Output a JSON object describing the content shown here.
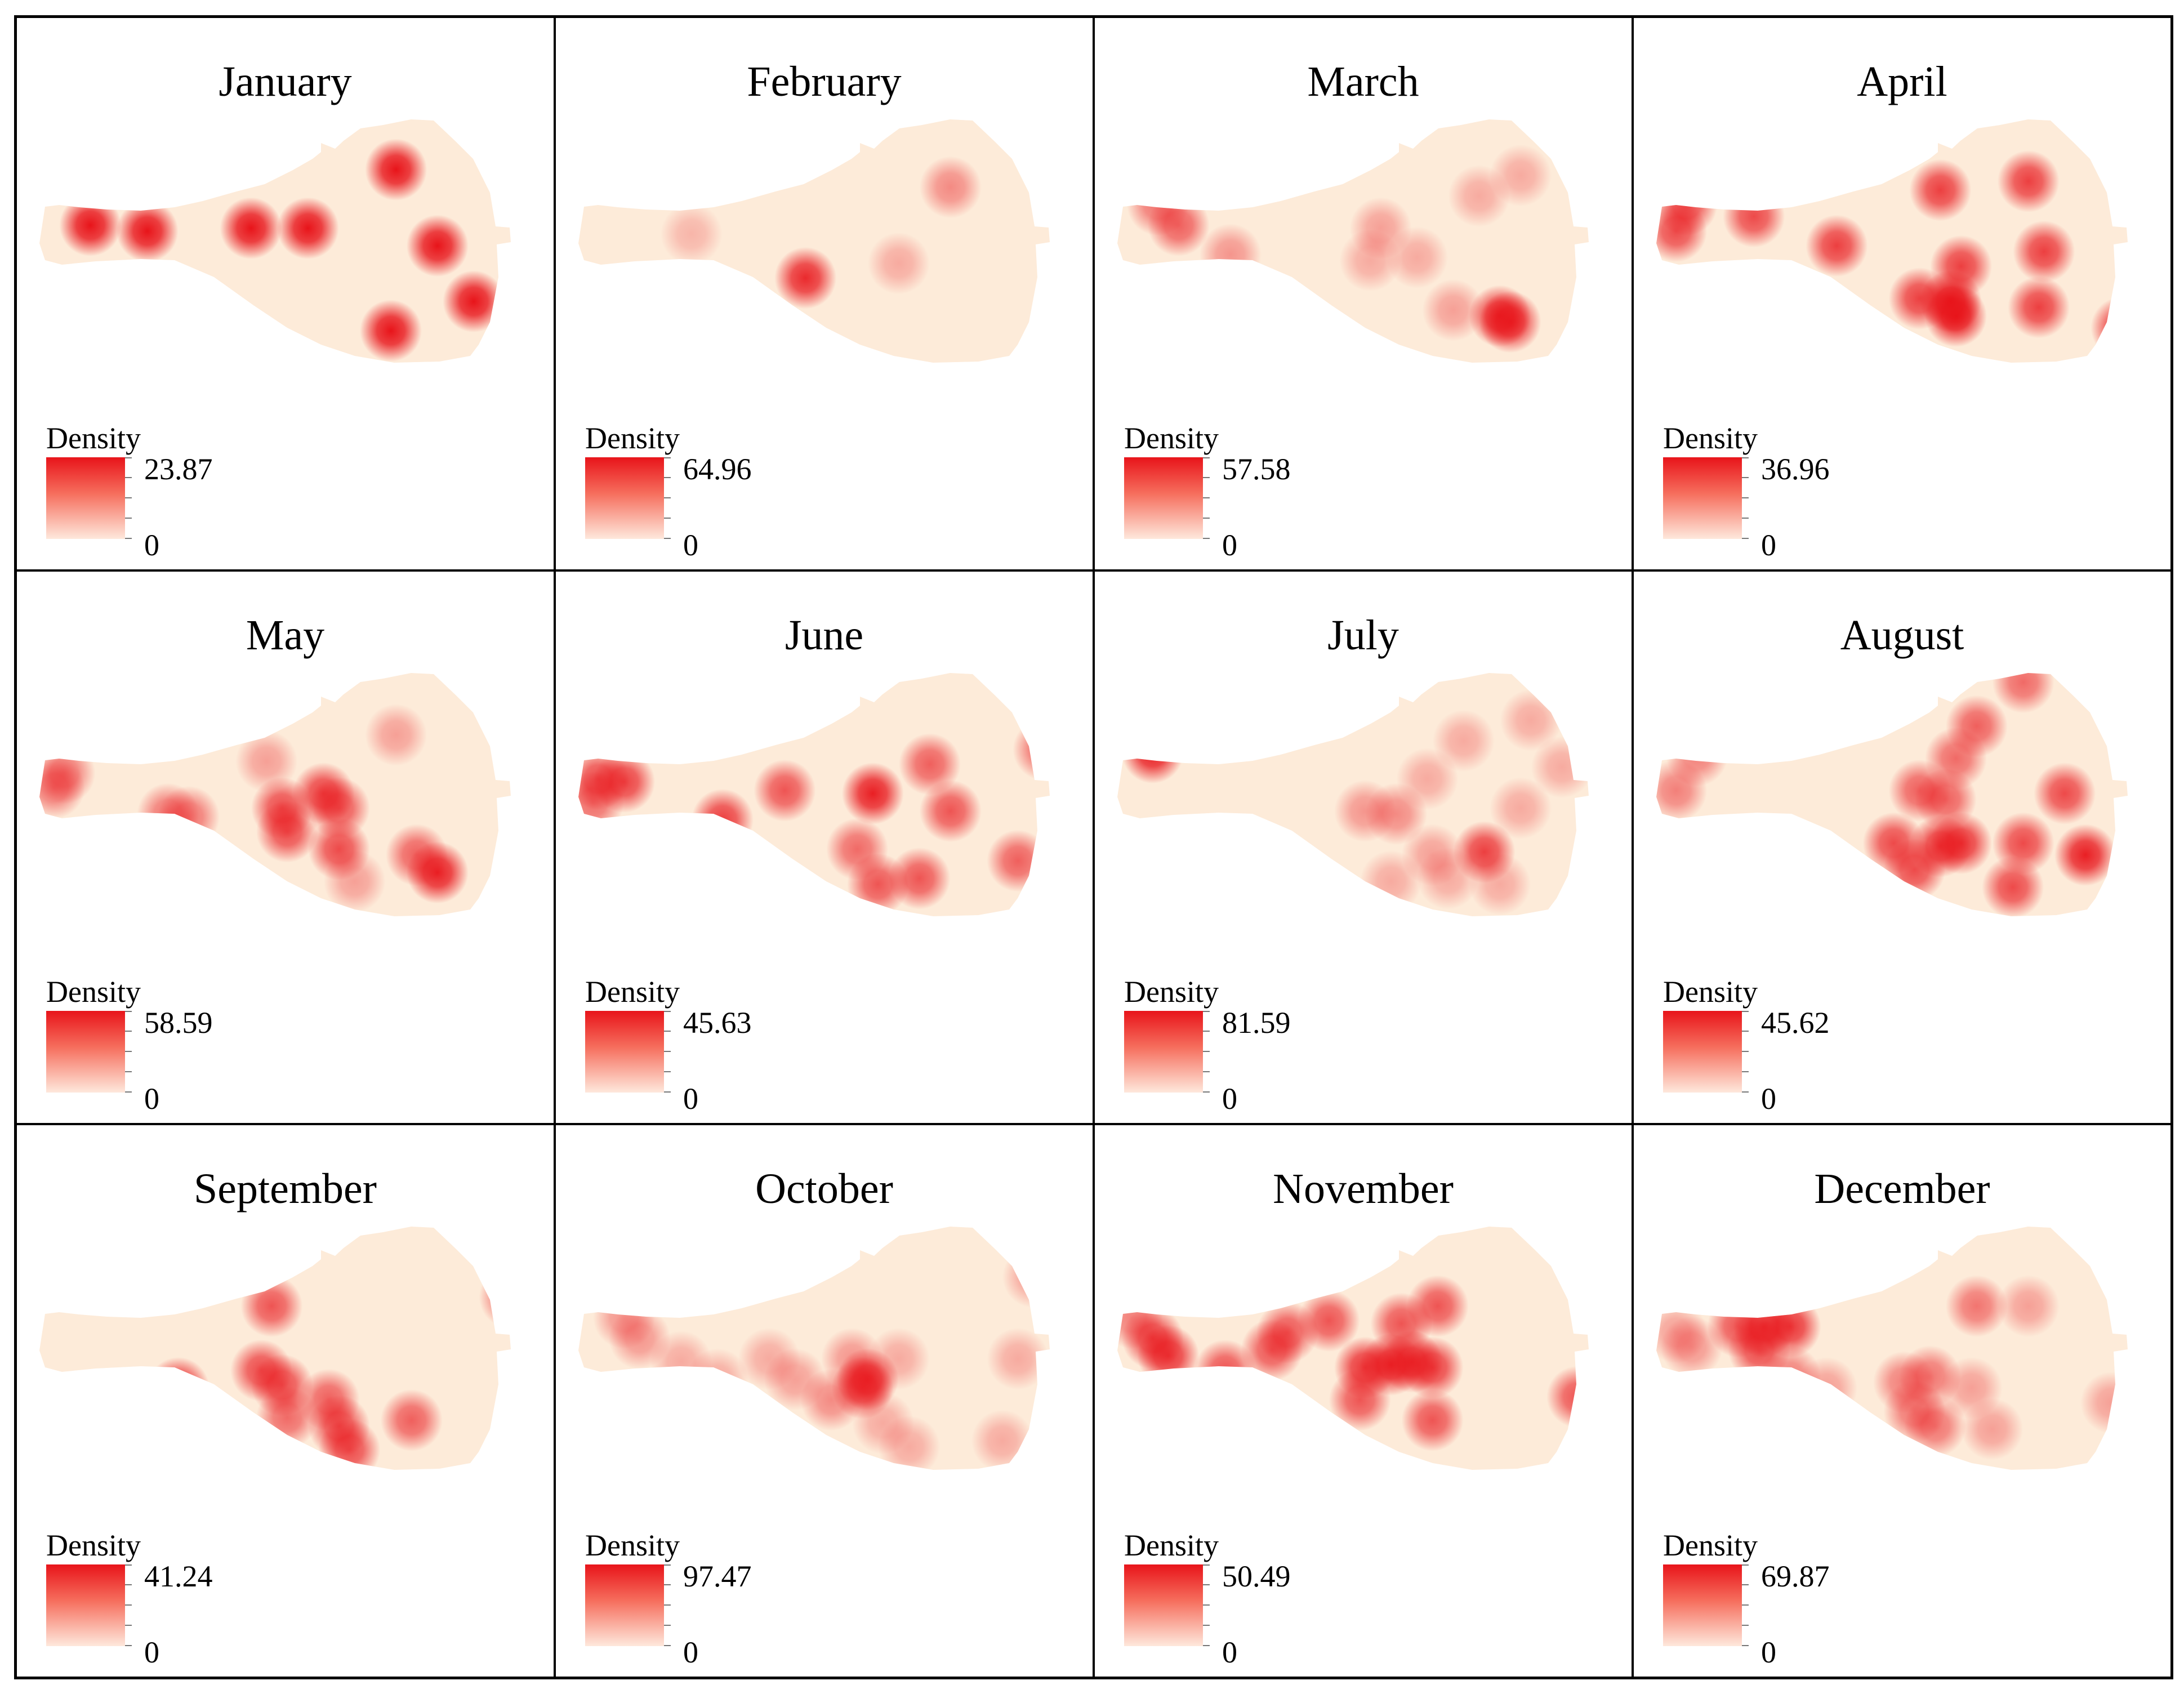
{
  "legend_title": "Density",
  "legend_min": "0",
  "colors": {
    "background": "#fdebd9",
    "high": "#e8141a",
    "low": "#fee8dc"
  },
  "panels": [
    {
      "month": "January",
      "max": "23.87",
      "hotspots": [
        [
          0.11,
          0.23,
          1.0
        ],
        [
          0.12,
          0.4,
          1.0
        ],
        [
          0.23,
          0.42,
          1.0
        ],
        [
          0.43,
          0.41,
          1.0
        ],
        [
          0.54,
          0.41,
          1.0
        ],
        [
          0.71,
          0.21,
          1.0
        ],
        [
          0.79,
          0.47,
          1.0
        ],
        [
          0.86,
          0.66,
          1.0
        ],
        [
          0.7,
          0.76,
          1.0
        ]
      ]
    },
    {
      "month": "February",
      "max": "64.96",
      "hotspots": [
        [
          0.24,
          0.43,
          0.25
        ],
        [
          0.46,
          0.58,
          0.9
        ],
        [
          0.64,
          0.53,
          0.3
        ],
        [
          0.74,
          0.27,
          0.45
        ]
      ]
    },
    {
      "month": "March",
      "max": "57.58",
      "hotspots": [
        [
          0.1,
          0.33,
          0.55
        ],
        [
          0.14,
          0.4,
          0.65
        ],
        [
          0.24,
          0.5,
          0.4
        ],
        [
          0.53,
          0.41,
          0.35
        ],
        [
          0.51,
          0.52,
          0.3
        ],
        [
          0.6,
          0.51,
          0.3
        ],
        [
          0.72,
          0.3,
          0.3
        ],
        [
          0.8,
          0.23,
          0.3
        ],
        [
          0.67,
          0.69,
          0.35
        ],
        [
          0.76,
          0.71,
          0.9
        ],
        [
          0.78,
          0.73,
          0.9
        ]
      ]
    },
    {
      "month": "April",
      "max": "36.96",
      "hotspots": [
        [
          0.08,
          0.33,
          0.75
        ],
        [
          0.06,
          0.42,
          0.75
        ],
        [
          0.21,
          0.37,
          0.75
        ],
        [
          0.37,
          0.47,
          0.8
        ],
        [
          0.57,
          0.28,
          0.8
        ],
        [
          0.74,
          0.25,
          0.8
        ],
        [
          0.77,
          0.49,
          0.8
        ],
        [
          0.61,
          0.54,
          0.8
        ],
        [
          0.53,
          0.65,
          0.8
        ],
        [
          0.59,
          0.66,
          1.0
        ],
        [
          0.6,
          0.71,
          1.0
        ],
        [
          0.76,
          0.68,
          0.8
        ],
        [
          0.92,
          0.75,
          0.85
        ]
      ]
    },
    {
      "month": "May",
      "max": "58.59",
      "hotspots": [
        [
          0.07,
          0.38,
          0.55
        ],
        [
          0.05,
          0.43,
          0.55
        ],
        [
          0.27,
          0.52,
          0.55
        ],
        [
          0.31,
          0.53,
          0.55
        ],
        [
          0.46,
          0.34,
          0.35
        ],
        [
          0.49,
          0.5,
          0.75
        ],
        [
          0.5,
          0.58,
          0.75
        ],
        [
          0.57,
          0.45,
          0.8
        ],
        [
          0.6,
          0.5,
          0.7
        ],
        [
          0.6,
          0.64,
          0.75
        ],
        [
          0.71,
          0.25,
          0.35
        ],
        [
          0.63,
          0.75,
          0.35
        ],
        [
          0.75,
          0.66,
          0.65
        ],
        [
          0.79,
          0.72,
          0.95
        ]
      ]
    },
    {
      "month": "June",
      "max": "45.63",
      "hotspots": [
        [
          0.06,
          0.4,
          0.75
        ],
        [
          0.11,
          0.41,
          0.8
        ],
        [
          0.05,
          0.48,
          0.6
        ],
        [
          0.3,
          0.54,
          0.8
        ],
        [
          0.42,
          0.44,
          0.7
        ],
        [
          0.59,
          0.45,
          0.95
        ],
        [
          0.7,
          0.35,
          0.65
        ],
        [
          0.74,
          0.51,
          0.7
        ],
        [
          0.56,
          0.64,
          0.6
        ],
        [
          0.6,
          0.76,
          0.7
        ],
        [
          0.68,
          0.74,
          0.7
        ],
        [
          0.87,
          0.68,
          0.65
        ],
        [
          0.92,
          0.3,
          0.6
        ]
      ]
    },
    {
      "month": "July",
      "max": "81.59",
      "hotspots": [
        [
          0.09,
          0.31,
          0.95
        ],
        [
          0.5,
          0.51,
          0.4
        ],
        [
          0.56,
          0.52,
          0.45
        ],
        [
          0.62,
          0.4,
          0.3
        ],
        [
          0.69,
          0.27,
          0.3
        ],
        [
          0.82,
          0.2,
          0.3
        ],
        [
          0.88,
          0.36,
          0.3
        ],
        [
          0.8,
          0.5,
          0.3
        ],
        [
          0.63,
          0.66,
          0.35
        ],
        [
          0.73,
          0.65,
          0.8
        ],
        [
          0.55,
          0.75,
          0.3
        ],
        [
          0.66,
          0.74,
          0.3
        ],
        [
          0.76,
          0.76,
          0.3
        ]
      ]
    },
    {
      "month": "August",
      "max": "45.62",
      "hotspots": [
        [
          0.1,
          0.32,
          0.5
        ],
        [
          0.06,
          0.44,
          0.5
        ],
        [
          0.64,
          0.22,
          0.65
        ],
        [
          0.6,
          0.33,
          0.6
        ],
        [
          0.53,
          0.44,
          0.65
        ],
        [
          0.58,
          0.47,
          0.65
        ],
        [
          0.81,
          0.45,
          0.75
        ],
        [
          0.48,
          0.62,
          0.75
        ],
        [
          0.57,
          0.63,
          0.85
        ],
        [
          0.61,
          0.62,
          0.85
        ],
        [
          0.52,
          0.71,
          0.75
        ],
        [
          0.73,
          0.62,
          0.75
        ],
        [
          0.85,
          0.66,
          0.95
        ],
        [
          0.71,
          0.77,
          0.75
        ],
        [
          0.73,
          0.07,
          0.6
        ]
      ]
    },
    {
      "month": "September",
      "max": "41.24",
      "hotspots": [
        [
          0.47,
          0.31,
          0.7
        ],
        [
          0.45,
          0.53,
          0.75
        ],
        [
          0.49,
          0.58,
          0.75
        ],
        [
          0.29,
          0.59,
          0.9
        ],
        [
          0.58,
          0.63,
          0.65
        ],
        [
          0.6,
          0.72,
          0.75
        ],
        [
          0.62,
          0.8,
          0.75
        ],
        [
          0.5,
          0.69,
          0.6
        ],
        [
          0.74,
          0.7,
          0.65
        ],
        [
          0.93,
          0.28,
          0.6
        ]
      ]
    },
    {
      "month": "October",
      "max": "97.47",
      "hotspots": [
        [
          0.11,
          0.35,
          0.4
        ],
        [
          0.14,
          0.42,
          0.4
        ],
        [
          0.22,
          0.5,
          0.3
        ],
        [
          0.29,
          0.56,
          0.3
        ],
        [
          0.39,
          0.49,
          0.3
        ],
        [
          0.44,
          0.56,
          0.35
        ],
        [
          0.51,
          0.63,
          0.45
        ],
        [
          0.57,
          0.59,
          0.75
        ],
        [
          0.58,
          0.56,
          0.85
        ],
        [
          0.55,
          0.49,
          0.4
        ],
        [
          0.64,
          0.49,
          0.3
        ],
        [
          0.61,
          0.71,
          0.3
        ],
        [
          0.66,
          0.79,
          0.3
        ],
        [
          0.84,
          0.77,
          0.3
        ],
        [
          0.87,
          0.49,
          0.3
        ],
        [
          0.9,
          0.21,
          0.35
        ]
      ]
    },
    {
      "month": "November",
      "max": "50.49",
      "hotspots": [
        [
          0.05,
          0.35,
          0.5
        ],
        [
          0.09,
          0.42,
          0.8
        ],
        [
          0.12,
          0.48,
          0.85
        ],
        [
          0.23,
          0.53,
          0.7
        ],
        [
          0.32,
          0.46,
          0.7
        ],
        [
          0.35,
          0.4,
          0.7
        ],
        [
          0.43,
          0.36,
          0.7
        ],
        [
          0.5,
          0.52,
          0.85
        ],
        [
          0.55,
          0.51,
          0.9
        ],
        [
          0.59,
          0.5,
          0.85
        ],
        [
          0.63,
          0.52,
          0.8
        ],
        [
          0.57,
          0.37,
          0.7
        ],
        [
          0.64,
          0.31,
          0.7
        ],
        [
          0.49,
          0.63,
          0.7
        ],
        [
          0.63,
          0.7,
          0.7
        ],
        [
          0.91,
          0.62,
          0.7
        ]
      ]
    },
    {
      "month": "December",
      "max": "69.87",
      "hotspots": [
        [
          0.06,
          0.4,
          0.35
        ],
        [
          0.09,
          0.45,
          0.4
        ],
        [
          0.18,
          0.38,
          0.7
        ],
        [
          0.23,
          0.38,
          0.85
        ],
        [
          0.28,
          0.38,
          0.85
        ],
        [
          0.22,
          0.46,
          0.75
        ],
        [
          0.28,
          0.55,
          0.5
        ],
        [
          0.35,
          0.59,
          0.35
        ],
        [
          0.5,
          0.57,
          0.5
        ],
        [
          0.55,
          0.55,
          0.55
        ],
        [
          0.52,
          0.67,
          0.55
        ],
        [
          0.56,
          0.72,
          0.55
        ],
        [
          0.63,
          0.59,
          0.35
        ],
        [
          0.64,
          0.31,
          0.55
        ],
        [
          0.74,
          0.31,
          0.35
        ],
        [
          0.67,
          0.73,
          0.35
        ],
        [
          0.9,
          0.64,
          0.35
        ]
      ]
    }
  ]
}
